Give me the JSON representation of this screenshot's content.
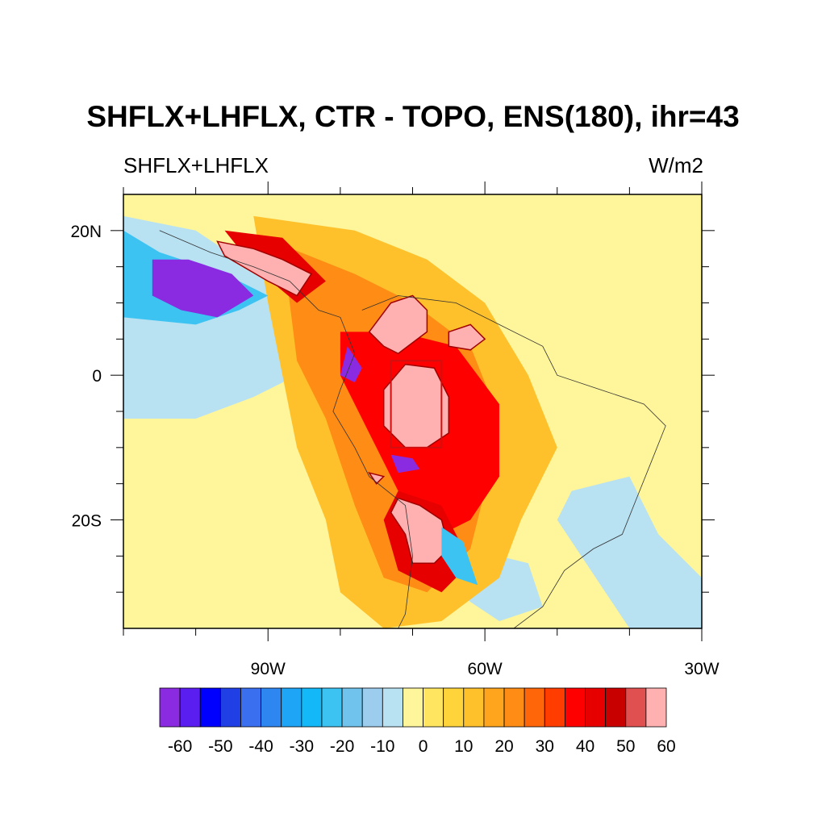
{
  "chart_data": {
    "type": "heatmap",
    "title": "SHFLX+LHFLX, CTR - TOPO, ENS(180), ihr=43",
    "left_string": "SHFLX+LHFLX",
    "right_string": "W/m2",
    "x_ticks": [
      {
        "lon": -90,
        "label": "90W"
      },
      {
        "lon": -60,
        "label": "60W"
      },
      {
        "lon": -30,
        "label": "30W"
      }
    ],
    "y_ticks": [
      {
        "lat": 20,
        "label": "20N"
      },
      {
        "lat": 0,
        "label": "0"
      },
      {
        "lat": -20,
        "label": "20S"
      }
    ],
    "lon_range": [
      -110,
      -30
    ],
    "lat_range": [
      -35,
      25
    ],
    "colorbar": {
      "labels": [
        "-60",
        "-50",
        "-40",
        "-30",
        "-20",
        "-10",
        "0",
        "10",
        "20",
        "30",
        "40",
        "50",
        "60"
      ],
      "colors": [
        "#8a2be2",
        "#5b1ef0",
        "#0000ff",
        "#2040e6",
        "#3a6ff0",
        "#2e86f0",
        "#1fa5f5",
        "#12b8f7",
        "#3dc3f2",
        "#6fc3ec",
        "#9ccdee",
        "#b8e1f2",
        "#fff59a",
        "#ffe560",
        "#ffd43a",
        "#ffc12b",
        "#ffa51d",
        "#ff8c14",
        "#ff660a",
        "#ff3d00",
        "#ff0000",
        "#e60000",
        "#c80000",
        "#e05050",
        "#ffb0b0"
      ]
    },
    "regions": [
      {
        "name": "yellow-northeast",
        "color": "#fff59a",
        "points": [
          [
            -62,
            25
          ],
          [
            -30,
            25
          ],
          [
            -30,
            2
          ],
          [
            -34,
            -5
          ],
          [
            -40,
            -10
          ],
          [
            -42,
            -20
          ],
          [
            -48,
            -26
          ],
          [
            -55,
            -30
          ],
          [
            -60,
            -35
          ],
          [
            -68,
            -35
          ],
          [
            -60,
            -25
          ],
          [
            -55,
            -15
          ],
          [
            -50,
            -5
          ],
          [
            -55,
            5
          ],
          [
            -62,
            12
          ],
          [
            -75,
            18
          ],
          [
            -85,
            22
          ],
          [
            -95,
            25
          ]
        ]
      },
      {
        "name": "yellow-pacific",
        "color": "#fff59a",
        "points": [
          [
            -110,
            -5
          ],
          [
            -95,
            -8
          ],
          [
            -88,
            -15
          ],
          [
            -85,
            -25
          ],
          [
            -85,
            -35
          ],
          [
            -110,
            -35
          ]
        ]
      },
      {
        "name": "blue-pacific",
        "color": "#b8e1f2",
        "points": [
          [
            -110,
            22
          ],
          [
            -100,
            20
          ],
          [
            -88,
            12
          ],
          [
            -82,
            6
          ],
          [
            -86,
            0
          ],
          [
            -92,
            -3
          ],
          [
            -100,
            -6
          ],
          [
            -110,
            -6
          ]
        ]
      },
      {
        "name": "blue-brazil-east",
        "color": "#b8e1f2",
        "points": [
          [
            -48,
            -16
          ],
          [
            -40,
            -14
          ],
          [
            -36,
            -22
          ],
          [
            -30,
            -28
          ],
          [
            -30,
            -35
          ],
          [
            -40,
            -35
          ],
          [
            -46,
            -26
          ],
          [
            -50,
            -20
          ]
        ]
      },
      {
        "name": "blue-brazil-south",
        "color": "#b8e1f2",
        "points": [
          [
            -62,
            -24
          ],
          [
            -54,
            -26
          ],
          [
            -52,
            -32
          ],
          [
            -58,
            -34
          ],
          [
            -64,
            -30
          ]
        ]
      },
      {
        "name": "orange-mainland",
        "color": "#ffc12b",
        "points": [
          [
            -92,
            22
          ],
          [
            -78,
            20
          ],
          [
            -68,
            16
          ],
          [
            -60,
            10
          ],
          [
            -54,
            0
          ],
          [
            -50,
            -10
          ],
          [
            -55,
            -20
          ],
          [
            -58,
            -28
          ],
          [
            -66,
            -34
          ],
          [
            -74,
            -35
          ],
          [
            -80,
            -30
          ],
          [
            -82,
            -20
          ],
          [
            -86,
            -10
          ],
          [
            -88,
            0
          ],
          [
            -90,
            10
          ]
        ]
      },
      {
        "name": "deep-orange-core",
        "color": "#ff8c14",
        "points": [
          [
            -88,
            18
          ],
          [
            -78,
            14
          ],
          [
            -70,
            10
          ],
          [
            -62,
            4
          ],
          [
            -58,
            -6
          ],
          [
            -60,
            -16
          ],
          [
            -62,
            -24
          ],
          [
            -68,
            -30
          ],
          [
            -74,
            -28
          ],
          [
            -78,
            -18
          ],
          [
            -82,
            -6
          ],
          [
            -86,
            2
          ]
        ]
      },
      {
        "name": "red-core",
        "color": "#ff0000",
        "points": [
          [
            -80,
            6
          ],
          [
            -72,
            6
          ],
          [
            -64,
            4
          ],
          [
            -58,
            -4
          ],
          [
            -58,
            -14
          ],
          [
            -62,
            -20
          ],
          [
            -66,
            -22
          ],
          [
            -72,
            -16
          ],
          [
            -76,
            -8
          ],
          [
            -80,
            0
          ]
        ]
      },
      {
        "name": "red-south",
        "color": "#e60000",
        "points": [
          [
            -72,
            -16
          ],
          [
            -66,
            -18
          ],
          [
            -62,
            -26
          ],
          [
            -66,
            -30
          ],
          [
            -72,
            -27
          ],
          [
            -74,
            -20
          ]
        ]
      },
      {
        "name": "red-north",
        "color": "#e60000",
        "points": [
          [
            -96,
            20
          ],
          [
            -88,
            19
          ],
          [
            -82,
            13
          ],
          [
            -86,
            10
          ],
          [
            -92,
            15
          ]
        ]
      },
      {
        "name": "pink-north",
        "color": "#ffb0b0",
        "points": [
          [
            -97,
            18.5
          ],
          [
            -92,
            17.5
          ],
          [
            -88,
            16
          ],
          [
            -84,
            14
          ],
          [
            -86,
            11
          ],
          [
            -90,
            13
          ],
          [
            -96,
            16.5
          ]
        ]
      },
      {
        "name": "pink-colombia",
        "color": "#ffb0b0",
        "points": [
          [
            -76,
            6
          ],
          [
            -73,
            10
          ],
          [
            -70,
            11
          ],
          [
            -68,
            9
          ],
          [
            -68,
            6
          ],
          [
            -72,
            3
          ],
          [
            -74,
            4
          ]
        ]
      },
      {
        "name": "pink-venezuela",
        "color": "#ffb0b0",
        "points": [
          [
            -65,
            6
          ],
          [
            -62,
            7
          ],
          [
            -60,
            5
          ],
          [
            -62,
            3.5
          ],
          [
            -65,
            4
          ]
        ]
      },
      {
        "name": "pink-amazon",
        "color": "#ffb0b0",
        "points": [
          [
            -74,
            -2
          ],
          [
            -71,
            1.5
          ],
          [
            -67,
            1
          ],
          [
            -65,
            -3
          ],
          [
            -65,
            -8
          ],
          [
            -68,
            -10
          ],
          [
            -71,
            -10
          ],
          [
            -74,
            -7
          ]
        ]
      },
      {
        "name": "pink-andes-south",
        "color": "#ffb0b0",
        "points": [
          [
            -72,
            -17
          ],
          [
            -69,
            -18
          ],
          [
            -66,
            -20
          ],
          [
            -65,
            -24
          ],
          [
            -67,
            -26
          ],
          [
            -70,
            -26
          ],
          [
            -71,
            -22
          ],
          [
            -73,
            -19
          ]
        ]
      },
      {
        "name": "pink-small",
        "color": "#ffb0b0",
        "points": [
          [
            -76,
            -13.5
          ],
          [
            -74,
            -14
          ],
          [
            -75,
            -15
          ]
        ]
      },
      {
        "name": "blue-gulf",
        "color": "#3dc3f2",
        "points": [
          [
            -110,
            20
          ],
          [
            -105,
            17
          ],
          [
            -96,
            14
          ],
          [
            -90,
            11
          ],
          [
            -94,
            9
          ],
          [
            -100,
            7
          ],
          [
            -110,
            8
          ]
        ]
      },
      {
        "name": "purple-gulf",
        "color": "#8a2be2",
        "points": [
          [
            -106,
            16
          ],
          [
            -101,
            16
          ],
          [
            -95,
            14
          ],
          [
            -92,
            11
          ],
          [
            -97,
            8
          ],
          [
            -102,
            9
          ],
          [
            -106,
            11
          ]
        ]
      },
      {
        "name": "purple-equator",
        "color": "#8a2be2",
        "points": [
          [
            -79,
            4
          ],
          [
            -77,
            1
          ],
          [
            -78,
            -1
          ],
          [
            -80,
            0
          ]
        ]
      },
      {
        "name": "purple-peru",
        "color": "#8a2be2",
        "points": [
          [
            -73,
            -11
          ],
          [
            -70,
            -11.5
          ],
          [
            -69,
            -13
          ],
          [
            -72,
            -13.5
          ]
        ]
      },
      {
        "name": "blue-east-peru",
        "color": "#3dc3f2",
        "points": [
          [
            -66,
            -21
          ],
          [
            -63,
            -23
          ],
          [
            -61,
            -29
          ],
          [
            -64,
            -28
          ],
          [
            -66,
            -25
          ]
        ]
      }
    ]
  }
}
